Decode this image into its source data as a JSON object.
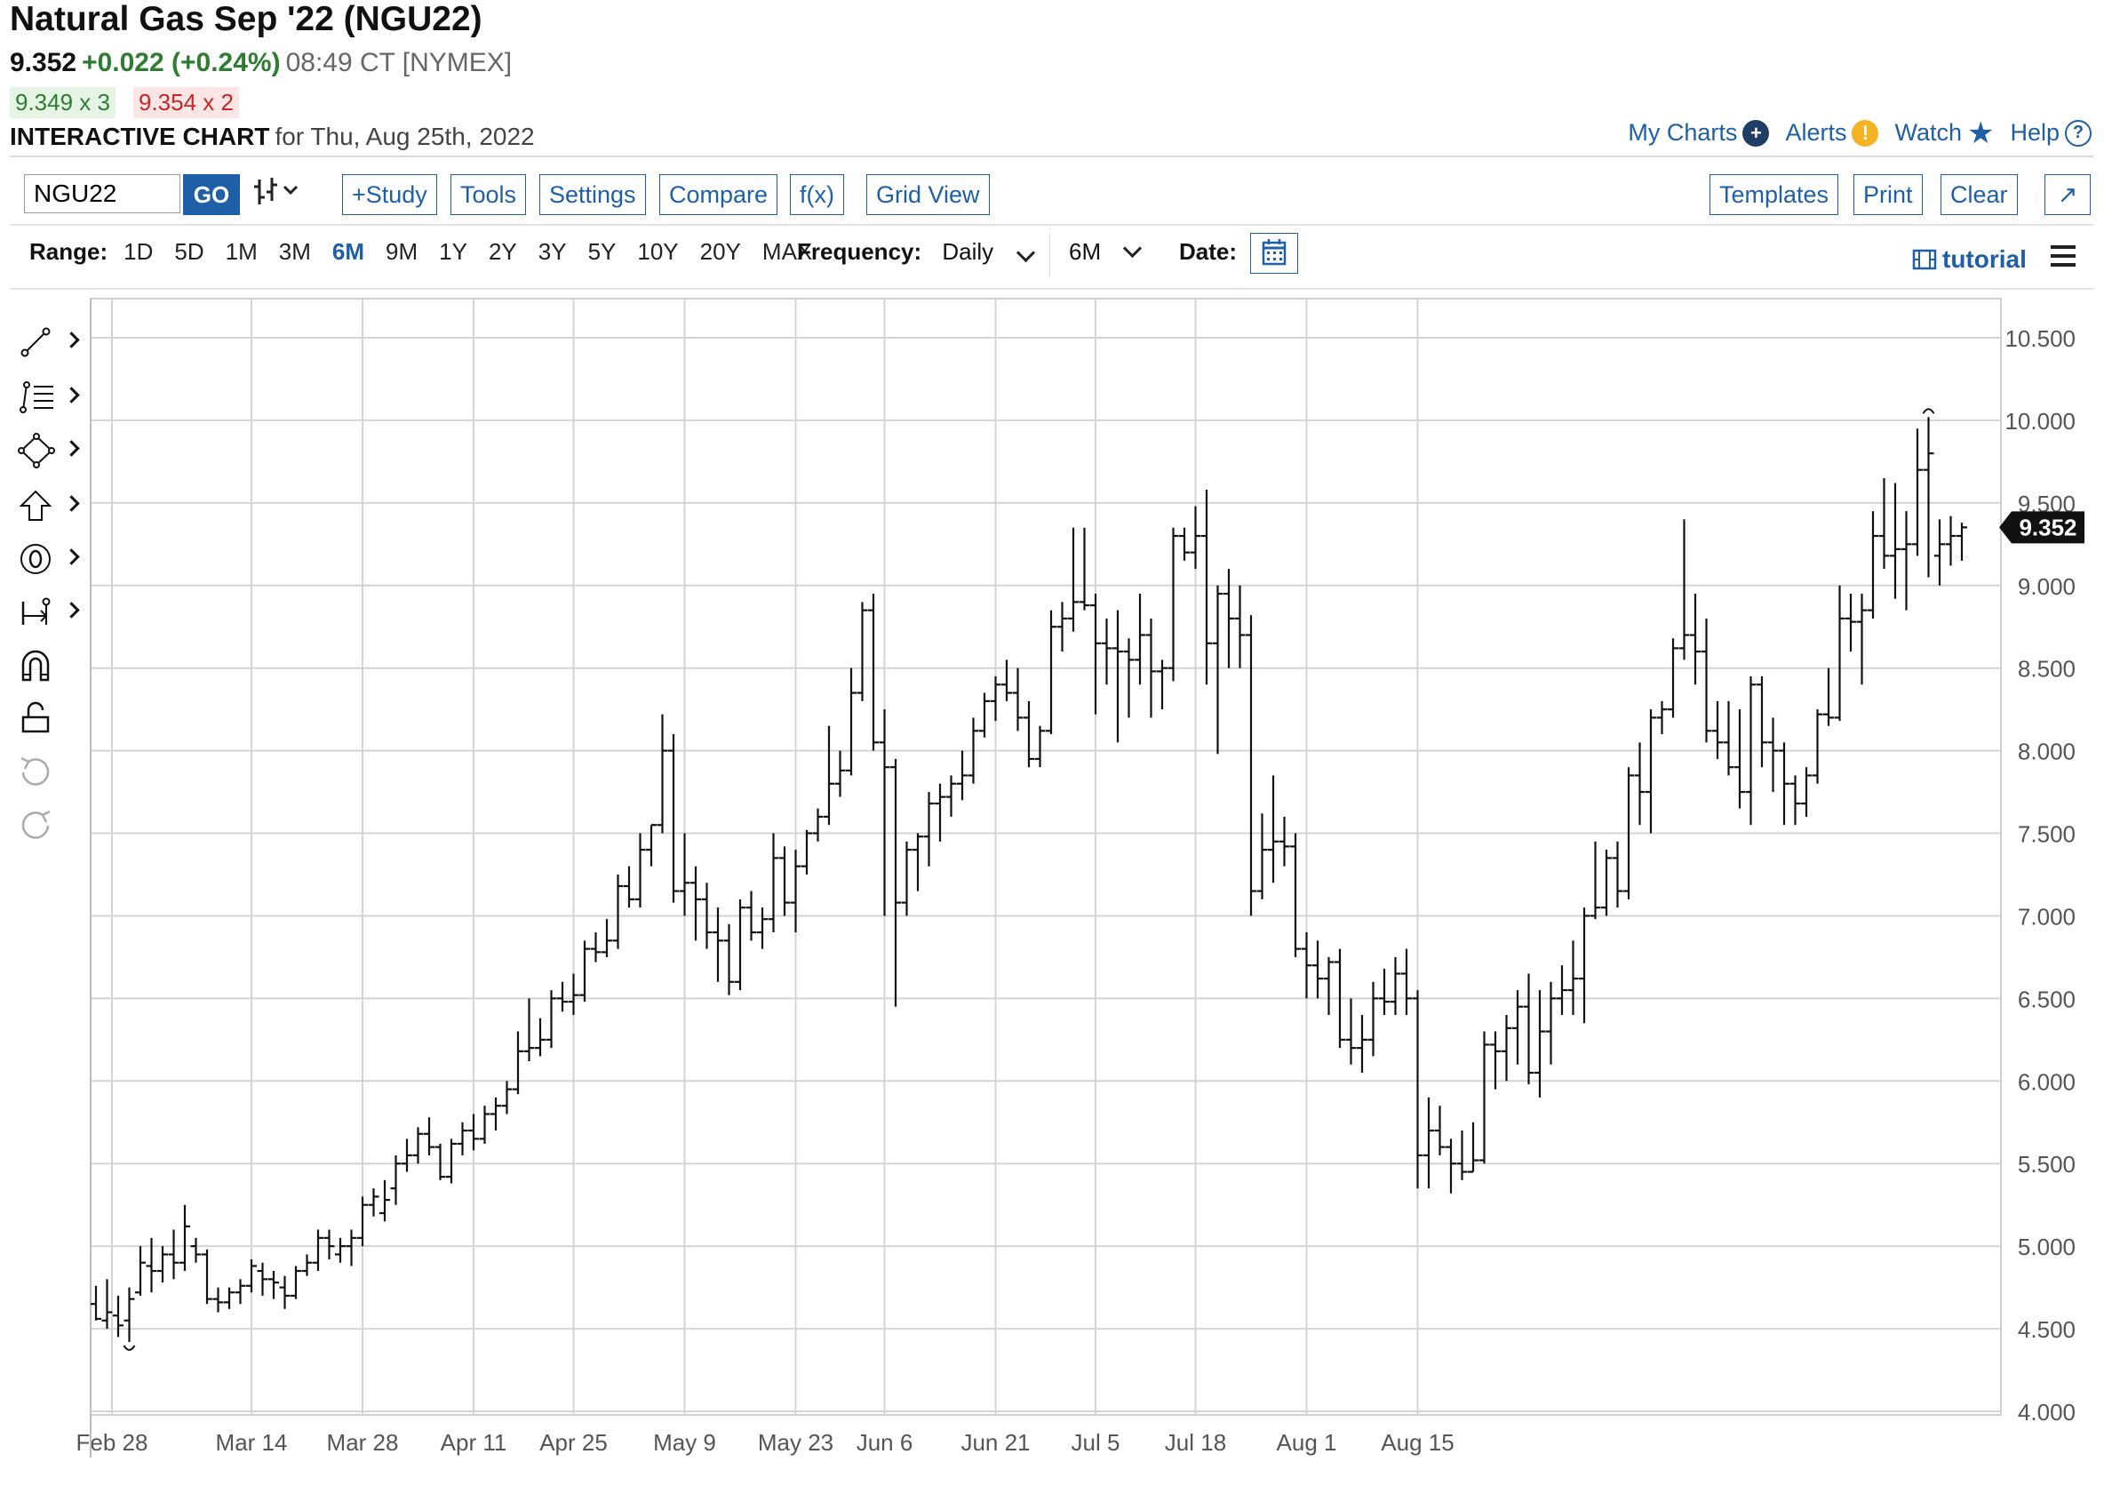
{
  "header": {
    "title": "Natural Gas Sep '22 (NGU22)",
    "last": "9.352",
    "change": "+0.022 (+0.24%)",
    "time": "08:49 CT [NYMEX]",
    "bid": "9.349 x 3",
    "ask": "9.354 x 2",
    "subtitle_strong": "INTERACTIVE CHART",
    "subtitle_for": "for Thu, Aug 25th, 2022"
  },
  "toplinks": {
    "my_charts": "My Charts",
    "alerts": "Alerts",
    "watch": "Watch",
    "help": "Help"
  },
  "toolbar": {
    "symbol_value": "NGU22",
    "go_label": "GO",
    "study_label": "+Study",
    "tools_label": "Tools",
    "settings_label": "Settings",
    "compare_label": "Compare",
    "fx_label": "f(x)",
    "gridview_label": "Grid View",
    "templates_label": "Templates",
    "print_label": "Print",
    "clear_label": "Clear",
    "expand_label": "↗"
  },
  "range": {
    "label": "Range:",
    "options": [
      "1D",
      "5D",
      "1M",
      "3M",
      "6M",
      "9M",
      "1Y",
      "2Y",
      "3Y",
      "5Y",
      "10Y",
      "20Y",
      "MAX"
    ],
    "selected": "6M",
    "frequency_label": "Frequency:",
    "frequency_value": "Daily",
    "period_value": "6M",
    "date_label": "Date:"
  },
  "tutorial_label": "tutorial",
  "colors": {
    "accent": "#1f5fa8",
    "up": "#2e7d32",
    "down": "#c62828"
  },
  "icons": [
    "trendline-icon",
    "fib-icon",
    "shape-icon",
    "arrow-up-icon",
    "annotation-icon",
    "measure-icon",
    "magnet-icon",
    "lock-icon",
    "undo-icon",
    "redo-icon"
  ],
  "chart_data": {
    "type": "ohlc",
    "title": "",
    "x_labels": [
      "Feb 28",
      "Mar 14",
      "Mar 28",
      "Apr 11",
      "Apr 25",
      "May 9",
      "May 23",
      "Jun 6",
      "Jun 21",
      "Jul 5",
      "Jul 18",
      "Aug 1",
      "Aug 15"
    ],
    "y_ticks": [
      "4.000",
      "4.500",
      "5.000",
      "5.500",
      "6.000",
      "6.500",
      "7.000",
      "7.500",
      "8.000",
      "8.500",
      "9.000",
      "9.500",
      "10.000",
      "10.500"
    ],
    "ylim": [
      4.0,
      10.5
    ],
    "last_price_label": "9.352",
    "bars": [
      [
        4.65,
        4.76,
        4.55,
        4.56
      ],
      [
        4.55,
        4.8,
        4.5,
        4.6
      ],
      [
        4.58,
        4.7,
        4.45,
        4.52
      ],
      [
        4.55,
        4.75,
        4.42,
        4.68
      ],
      [
        4.72,
        5.0,
        4.7,
        4.9
      ],
      [
        4.88,
        5.05,
        4.72,
        4.85
      ],
      [
        4.85,
        5.0,
        4.78,
        4.95
      ],
      [
        4.95,
        5.1,
        4.8,
        4.9
      ],
      [
        4.9,
        5.25,
        4.85,
        5.12
      ],
      [
        5.0,
        5.05,
        4.9,
        4.95
      ],
      [
        4.95,
        4.98,
        4.65,
        4.68
      ],
      [
        4.68,
        4.75,
        4.6,
        4.66
      ],
      [
        4.66,
        4.75,
        4.62,
        4.72
      ],
      [
        4.72,
        4.8,
        4.65,
        4.76
      ],
      [
        4.76,
        4.92,
        4.72,
        4.88
      ],
      [
        4.85,
        4.9,
        4.7,
        4.8
      ],
      [
        4.8,
        4.85,
        4.68,
        4.78
      ],
      [
        4.75,
        4.82,
        4.62,
        4.7
      ],
      [
        4.7,
        4.88,
        4.68,
        4.85
      ],
      [
        4.85,
        4.95,
        4.82,
        4.9
      ],
      [
        4.9,
        5.1,
        4.85,
        5.05
      ],
      [
        5.05,
        5.1,
        4.92,
        5.0
      ],
      [
        4.95,
        5.05,
        4.9,
        5.0
      ],
      [
        5.0,
        5.1,
        4.88,
        5.05
      ],
      [
        5.05,
        5.3,
        5.0,
        5.25
      ],
      [
        5.25,
        5.35,
        5.18,
        5.3
      ],
      [
        5.2,
        5.4,
        5.15,
        5.28
      ],
      [
        5.35,
        5.55,
        5.25,
        5.5
      ],
      [
        5.5,
        5.65,
        5.45,
        5.55
      ],
      [
        5.55,
        5.72,
        5.5,
        5.68
      ],
      [
        5.68,
        5.78,
        5.55,
        5.6
      ],
      [
        5.6,
        5.62,
        5.4,
        5.42
      ],
      [
        5.42,
        5.65,
        5.38,
        5.62
      ],
      [
        5.62,
        5.75,
        5.55,
        5.7
      ],
      [
        5.7,
        5.8,
        5.58,
        5.65
      ],
      [
        5.65,
        5.85,
        5.62,
        5.8
      ],
      [
        5.8,
        5.9,
        5.7,
        5.85
      ],
      [
        5.85,
        6.0,
        5.8,
        5.95
      ],
      [
        5.95,
        6.3,
        5.92,
        6.18
      ],
      [
        6.18,
        6.5,
        6.12,
        6.2
      ],
      [
        6.2,
        6.38,
        6.15,
        6.25
      ],
      [
        6.25,
        6.55,
        6.2,
        6.5
      ],
      [
        6.5,
        6.6,
        6.42,
        6.48
      ],
      [
        6.48,
        6.65,
        6.4,
        6.52
      ],
      [
        6.52,
        6.85,
        6.48,
        6.8
      ],
      [
        6.8,
        6.9,
        6.72,
        6.78
      ],
      [
        6.78,
        6.98,
        6.75,
        6.85
      ],
      [
        6.85,
        7.25,
        6.8,
        7.18
      ],
      [
        7.18,
        7.3,
        7.05,
        7.1
      ],
      [
        7.1,
        7.5,
        7.05,
        7.4
      ],
      [
        7.4,
        7.55,
        7.3,
        7.55
      ],
      [
        7.55,
        8.22,
        7.5,
        8.0
      ],
      [
        8.0,
        8.1,
        7.08,
        7.15
      ],
      [
        7.15,
        7.5,
        7.0,
        7.2
      ],
      [
        7.2,
        7.3,
        6.85,
        7.1
      ],
      [
        7.1,
        7.2,
        6.8,
        6.9
      ],
      [
        6.9,
        7.05,
        6.6,
        6.85
      ],
      [
        6.85,
        6.95,
        6.52,
        6.6
      ],
      [
        6.6,
        7.1,
        6.55,
        7.05
      ],
      [
        7.05,
        7.15,
        6.85,
        6.9
      ],
      [
        6.9,
        7.05,
        6.8,
        6.98
      ],
      [
        6.98,
        7.5,
        6.9,
        7.35
      ],
      [
        7.35,
        7.42,
        7.0,
        7.08
      ],
      [
        7.08,
        7.4,
        6.9,
        7.3
      ],
      [
        7.3,
        7.52,
        7.25,
        7.5
      ],
      [
        7.5,
        7.65,
        7.45,
        7.6
      ],
      [
        7.6,
        8.15,
        7.55,
        7.8
      ],
      [
        7.8,
        8.0,
        7.72,
        7.88
      ],
      [
        7.88,
        8.5,
        7.85,
        8.35
      ],
      [
        8.35,
        8.9,
        8.3,
        8.85
      ],
      [
        8.85,
        8.95,
        8.0,
        8.05
      ],
      [
        8.05,
        8.25,
        7.0,
        7.9
      ],
      [
        7.9,
        7.95,
        6.45,
        7.08
      ],
      [
        7.08,
        7.45,
        7.0,
        7.4
      ],
      [
        7.4,
        7.5,
        7.15,
        7.48
      ],
      [
        7.48,
        7.75,
        7.3,
        7.68
      ],
      [
        7.68,
        7.8,
        7.45,
        7.72
      ],
      [
        7.72,
        7.85,
        7.6,
        7.8
      ],
      [
        7.8,
        8.0,
        7.7,
        7.85
      ],
      [
        7.85,
        8.2,
        7.8,
        8.12
      ],
      [
        8.12,
        8.35,
        8.08,
        8.3
      ],
      [
        8.3,
        8.45,
        8.18,
        8.4
      ],
      [
        8.4,
        8.55,
        8.3,
        8.35
      ],
      [
        8.35,
        8.5,
        8.12,
        8.2
      ],
      [
        8.2,
        8.3,
        7.9,
        7.95
      ],
      [
        7.95,
        8.15,
        7.9,
        8.12
      ],
      [
        8.12,
        8.85,
        8.1,
        8.75
      ],
      [
        8.75,
        8.9,
        8.6,
        8.8
      ],
      [
        8.8,
        9.35,
        8.72,
        8.9
      ],
      [
        8.9,
        9.35,
        8.85,
        8.88
      ],
      [
        8.88,
        8.95,
        8.22,
        8.65
      ],
      [
        8.65,
        8.8,
        8.4,
        8.62
      ],
      [
        8.62,
        8.85,
        8.05,
        8.6
      ],
      [
        8.6,
        8.68,
        8.2,
        8.55
      ],
      [
        8.55,
        8.95,
        8.4,
        8.7
      ],
      [
        8.7,
        8.8,
        8.2,
        8.48
      ],
      [
        8.48,
        8.55,
        8.25,
        8.5
      ],
      [
        8.5,
        9.35,
        8.42,
        9.3
      ],
      [
        9.3,
        9.35,
        9.15,
        9.2
      ],
      [
        9.2,
        9.48,
        9.1,
        9.3
      ],
      [
        9.3,
        9.58,
        8.4,
        8.65
      ],
      [
        8.65,
        9.0,
        7.98,
        8.95
      ],
      [
        8.95,
        9.1,
        8.5,
        8.8
      ],
      [
        8.8,
        9.0,
        8.5,
        8.7
      ],
      [
        8.7,
        8.82,
        7.0,
        7.15
      ],
      [
        7.15,
        7.62,
        7.1,
        7.4
      ],
      [
        7.4,
        7.85,
        7.2,
        7.45
      ],
      [
        7.45,
        7.6,
        7.3,
        7.42
      ],
      [
        7.42,
        7.5,
        6.75,
        6.8
      ],
      [
        6.8,
        6.9,
        6.5,
        6.7
      ],
      [
        6.7,
        6.85,
        6.5,
        6.62
      ],
      [
        6.62,
        6.75,
        6.4,
        6.72
      ],
      [
        6.72,
        6.8,
        6.2,
        6.25
      ],
      [
        6.25,
        6.5,
        6.1,
        6.2
      ],
      [
        6.2,
        6.4,
        6.05,
        6.25
      ],
      [
        6.25,
        6.6,
        6.15,
        6.5
      ],
      [
        6.5,
        6.68,
        6.4,
        6.48
      ],
      [
        6.48,
        6.75,
        6.4,
        6.65
      ],
      [
        6.65,
        6.8,
        6.4,
        6.5
      ],
      [
        6.5,
        6.55,
        5.35,
        5.55
      ],
      [
        5.55,
        5.9,
        5.35,
        5.7
      ],
      [
        5.7,
        5.85,
        5.55,
        5.6
      ],
      [
        5.6,
        5.65,
        5.32,
        5.5
      ],
      [
        5.5,
        5.7,
        5.4,
        5.45
      ],
      [
        5.45,
        5.75,
        5.45,
        5.52
      ],
      [
        5.52,
        6.3,
        5.5,
        6.22
      ],
      [
        6.22,
        6.3,
        5.95,
        6.18
      ],
      [
        6.18,
        6.4,
        6.0,
        6.32
      ],
      [
        6.32,
        6.55,
        6.1,
        6.45
      ],
      [
        6.45,
        6.65,
        5.98,
        6.05
      ],
      [
        6.05,
        6.55,
        5.9,
        6.3
      ],
      [
        6.3,
        6.6,
        6.1,
        6.5
      ],
      [
        6.5,
        6.7,
        6.4,
        6.55
      ],
      [
        6.55,
        6.85,
        6.4,
        6.62
      ],
      [
        6.62,
        7.05,
        6.35,
        7.0
      ],
      [
        7.0,
        7.45,
        6.98,
        7.05
      ],
      [
        7.05,
        7.4,
        7.0,
        7.35
      ],
      [
        7.35,
        7.45,
        7.05,
        7.15
      ],
      [
        7.15,
        7.9,
        7.1,
        7.85
      ],
      [
        7.85,
        8.05,
        7.55,
        7.75
      ],
      [
        7.75,
        8.25,
        7.5,
        8.2
      ],
      [
        8.2,
        8.3,
        8.1,
        8.25
      ],
      [
        8.25,
        8.68,
        8.2,
        8.62
      ],
      [
        8.62,
        9.4,
        8.55,
        8.7
      ],
      [
        8.7,
        8.95,
        8.4,
        8.6
      ],
      [
        8.6,
        8.8,
        8.05,
        8.12
      ],
      [
        8.12,
        8.3,
        7.95,
        8.05
      ],
      [
        8.05,
        8.3,
        7.85,
        7.9
      ],
      [
        7.9,
        8.25,
        7.65,
        7.75
      ],
      [
        7.75,
        8.45,
        7.55,
        8.4
      ],
      [
        8.4,
        8.45,
        7.9,
        8.05
      ],
      [
        8.05,
        8.2,
        7.75,
        8.0
      ],
      [
        8.0,
        8.05,
        7.55,
        7.8
      ],
      [
        7.8,
        7.85,
        7.55,
        7.68
      ],
      [
        7.68,
        7.9,
        7.6,
        7.85
      ],
      [
        7.85,
        8.25,
        7.8,
        8.22
      ],
      [
        8.22,
        8.5,
        8.15,
        8.2
      ],
      [
        8.2,
        9.0,
        8.18,
        8.8
      ],
      [
        8.8,
        8.95,
        8.6,
        8.78
      ],
      [
        8.78,
        8.95,
        8.4,
        8.85
      ],
      [
        8.85,
        9.45,
        8.8,
        9.3
      ],
      [
        9.3,
        9.65,
        9.1,
        9.18
      ],
      [
        9.18,
        9.62,
        8.92,
        9.22
      ],
      [
        9.22,
        9.45,
        8.85,
        9.25
      ],
      [
        9.25,
        9.95,
        9.18,
        9.7
      ],
      [
        9.7,
        10.02,
        9.05,
        9.8
      ],
      [
        9.18,
        9.4,
        9.0,
        9.25
      ],
      [
        9.25,
        9.42,
        9.12,
        9.3
      ],
      [
        9.3,
        9.38,
        9.15,
        9.352
      ]
    ]
  }
}
